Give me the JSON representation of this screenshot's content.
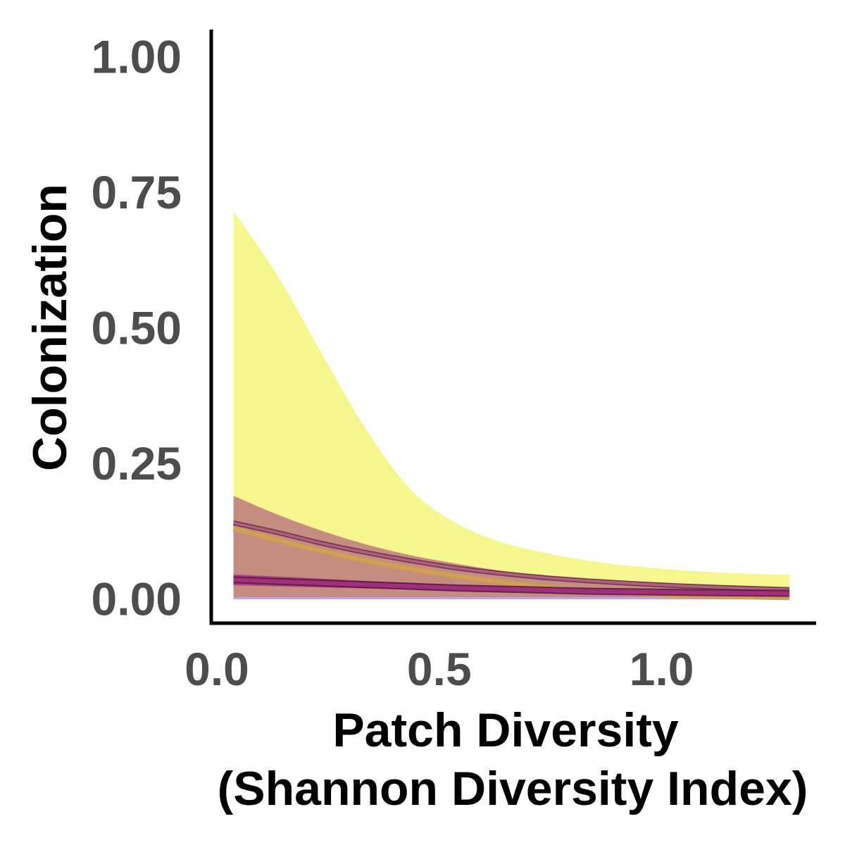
{
  "chart_data": {
    "type": "line",
    "xlabel_line1": "Patch Diversity",
    "xlabel_line2": "(Shannon Diversity Index)",
    "ylabel": "Colonization",
    "xlim": [
      0.0,
      1.36
    ],
    "ylim": [
      -0.045,
      1.05
    ],
    "x_ticks": [
      {
        "value": 0.0,
        "label": "0.0"
      },
      {
        "value": 0.5,
        "label": "0.5"
      },
      {
        "value": 1.0,
        "label": "1.0"
      }
    ],
    "y_ticks": [
      {
        "value": 0.0,
        "label": "0.00"
      },
      {
        "value": 0.25,
        "label": "0.25"
      },
      {
        "value": 0.5,
        "label": "0.50"
      },
      {
        "value": 0.75,
        "label": "0.75"
      },
      {
        "value": 1.0,
        "label": "1.00"
      }
    ],
    "grid": false,
    "legend": "none",
    "x": [
      0.05,
      0.15,
      0.25,
      0.35,
      0.45,
      0.55,
      0.65,
      0.75,
      0.85,
      0.95,
      1.05,
      1.15,
      1.3
    ],
    "series": [
      {
        "color": "#f5f57a",
        "line_color": "#c8a050",
        "fit": [
          0.13,
          0.108,
          0.088,
          0.07,
          0.055,
          0.042,
          0.031,
          0.022,
          0.015,
          0.01,
          0.006,
          0.004,
          0.002
        ],
        "lower": [
          0.003,
          0.003,
          0.003,
          0.003,
          0.003,
          0.003,
          0.003,
          0.003,
          0.003,
          0.003,
          0.003,
          0.003,
          0.003
        ],
        "upper": [
          0.715,
          0.595,
          0.45,
          0.31,
          0.2,
          0.14,
          0.105,
          0.085,
          0.07,
          0.06,
          0.053,
          0.048,
          0.044
        ]
      },
      {
        "color": "#b0607a",
        "line_color": "#6b3050",
        "fit": [
          0.14,
          0.122,
          0.102,
          0.085,
          0.07,
          0.057,
          0.047,
          0.039,
          0.033,
          0.028,
          0.024,
          0.021,
          0.017
        ],
        "lower": [
          0.003,
          0.003,
          0.003,
          0.003,
          0.003,
          0.003,
          0.003,
          0.003,
          0.003,
          0.003,
          0.003,
          0.003,
          0.003
        ],
        "upper": [
          0.19,
          0.155,
          0.125,
          0.1,
          0.08,
          0.065,
          0.052,
          0.043,
          0.036,
          0.031,
          0.027,
          0.024,
          0.02
        ]
      },
      {
        "color": "#a0307a",
        "line_color": "#5a1a48",
        "fit": [
          0.035,
          0.032,
          0.029,
          0.026,
          0.023,
          0.02,
          0.018,
          0.016,
          0.014,
          0.013,
          0.012,
          0.011,
          0.01
        ],
        "lower": [
          0.025,
          0.023,
          0.021,
          0.019,
          0.017,
          0.015,
          0.013,
          0.012,
          0.011,
          0.01,
          0.009,
          0.008,
          0.007
        ],
        "upper": [
          0.045,
          0.041,
          0.037,
          0.033,
          0.029,
          0.025,
          0.023,
          0.021,
          0.019,
          0.017,
          0.016,
          0.015,
          0.014
        ]
      }
    ],
    "baseline_band_color": "#c9a0e0"
  }
}
